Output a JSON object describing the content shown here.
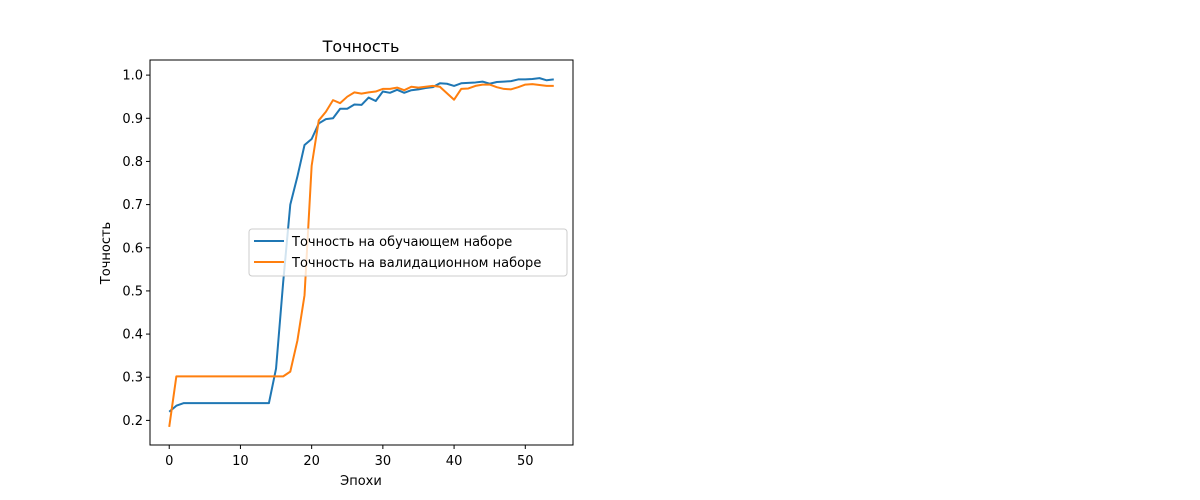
{
  "chart_data": {
    "type": "line",
    "title": "Точность",
    "xlabel": "Эпохи",
    "ylabel": "Точность",
    "xlim": [
      -2.7,
      56.7
    ],
    "ylim": [
      0.143,
      1.035
    ],
    "xticks": [
      0,
      10,
      20,
      30,
      40,
      50
    ],
    "xtick_labels": [
      "0",
      "10",
      "20",
      "30",
      "40",
      "50"
    ],
    "yticks": [
      0.2,
      0.3,
      0.4,
      0.5,
      0.6,
      0.7,
      0.8,
      0.9,
      1.0
    ],
    "ytick_labels": [
      "0.2",
      "0.3",
      "0.4",
      "0.5",
      "0.6",
      "0.7",
      "0.8",
      "0.9",
      "1.0"
    ],
    "grid": false,
    "legend_position": "center",
    "x": [
      0,
      1,
      2,
      3,
      4,
      5,
      6,
      7,
      8,
      9,
      10,
      11,
      12,
      13,
      14,
      15,
      16,
      17,
      18,
      19,
      20,
      21,
      22,
      23,
      24,
      25,
      26,
      27,
      28,
      29,
      30,
      31,
      32,
      33,
      34,
      35,
      36,
      37,
      38,
      39,
      40,
      41,
      42,
      43,
      44,
      45,
      46,
      47,
      48,
      49,
      50,
      51,
      52,
      53,
      54
    ],
    "series": [
      {
        "name": "Точность на обучающем наборе",
        "color": "#1f77b4",
        "values": [
          0.22,
          0.234,
          0.24,
          0.24,
          0.24,
          0.24,
          0.24,
          0.24,
          0.24,
          0.24,
          0.24,
          0.24,
          0.24,
          0.24,
          0.24,
          0.32,
          0.52,
          0.7,
          0.765,
          0.838,
          0.852,
          0.888,
          0.898,
          0.9,
          0.922,
          0.922,
          0.932,
          0.931,
          0.948,
          0.94,
          0.962,
          0.959,
          0.966,
          0.959,
          0.965,
          0.967,
          0.97,
          0.972,
          0.981,
          0.98,
          0.975,
          0.981,
          0.982,
          0.983,
          0.985,
          0.98,
          0.984,
          0.985,
          0.986,
          0.99,
          0.99,
          0.991,
          0.993,
          0.988,
          0.99
        ]
      },
      {
        "name": "Точность на валидационном наборе",
        "color": "#ff7f0e",
        "values": [
          0.185,
          0.302,
          0.302,
          0.302,
          0.302,
          0.302,
          0.302,
          0.302,
          0.302,
          0.302,
          0.302,
          0.302,
          0.302,
          0.302,
          0.302,
          0.302,
          0.302,
          0.313,
          0.385,
          0.49,
          0.79,
          0.895,
          0.915,
          0.942,
          0.935,
          0.95,
          0.96,
          0.957,
          0.96,
          0.962,
          0.968,
          0.968,
          0.971,
          0.965,
          0.973,
          0.971,
          0.973,
          0.975,
          0.973,
          0.958,
          0.943,
          0.968,
          0.969,
          0.975,
          0.978,
          0.978,
          0.972,
          0.968,
          0.967,
          0.972,
          0.978,
          0.979,
          0.977,
          0.975,
          0.975
        ]
      }
    ]
  }
}
